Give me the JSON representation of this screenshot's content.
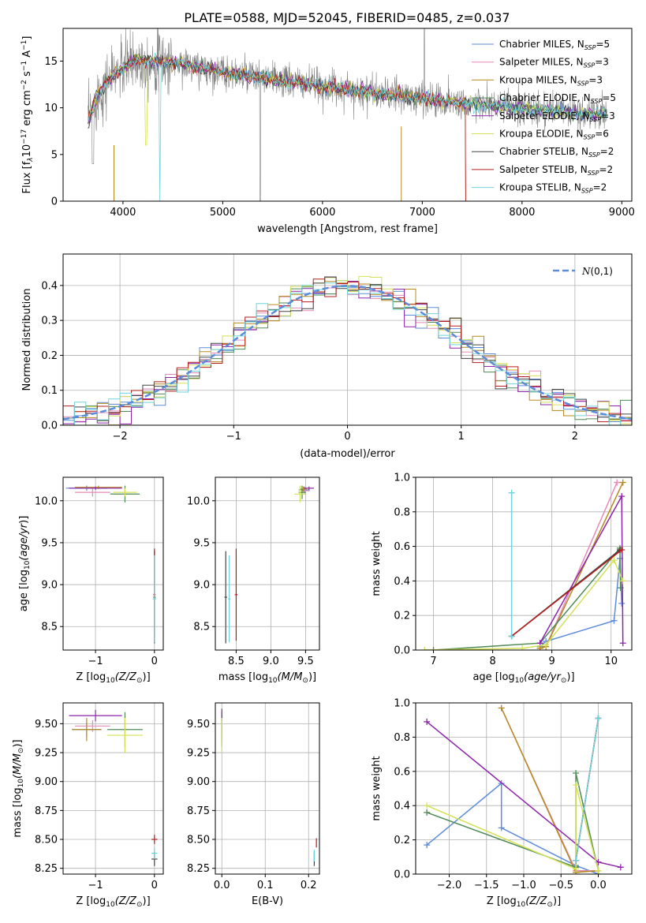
{
  "figure_title": "PLATE=0588, MJD=52045, FIBERID=0485, z=0.037",
  "series": [
    {
      "name": "Chabrier MILES, N_SSP=5",
      "base": "Chabrier MILES, N",
      "sub": "SSP",
      "tail": "=5",
      "color": "#5b8bd9"
    },
    {
      "name": "Salpeter MILES, N_SSP=3",
      "base": "Salpeter MILES, N",
      "sub": "SSP",
      "tail": "=3",
      "color": "#e58ab8"
    },
    {
      "name": "Kroupa MILES, N_SSP=3",
      "base": "Kroupa MILES, N",
      "sub": "SSP",
      "tail": "=3",
      "color": "#b58a1f"
    },
    {
      "name": "Chabrier ELODIE, N_SSP=5",
      "base": "Chabrier ELODIE, N",
      "sub": "SSP",
      "tail": "=5",
      "color": "#4e8a54"
    },
    {
      "name": "Salpeter ELODIE, N_SSP=3",
      "base": "Salpeter ELODIE, N",
      "sub": "SSP",
      "tail": "=3",
      "color": "#8e24aa"
    },
    {
      "name": "Kroupa ELODIE, N_SSP=6",
      "base": "Kroupa ELODIE, N",
      "sub": "SSP",
      "tail": "=6",
      "color": "#d4e157"
    },
    {
      "name": "Chabrier STELIB, N_SSP=2",
      "base": "Chabrier STELIB, N",
      "sub": "SSP",
      "tail": "=2",
      "color": "#444444"
    },
    {
      "name": "Salpeter STELIB, N_SSP=2",
      "base": "Salpeter STELIB, N",
      "sub": "SSP",
      "tail": "=2",
      "color": "#b71c1c"
    },
    {
      "name": "Kroupa STELIB, N_SSP=2",
      "base": "Kroupa STELIB, N",
      "sub": "SSP",
      "tail": "=2",
      "color": "#6dd3dc"
    }
  ],
  "chart_data": [
    {
      "id": "spectrum",
      "type": "line",
      "xlabel": "wavelength [Angstrom, rest frame]",
      "ylabel": "Flux [f_λ 10^-17 erg cm^-2 s^-1 A^-1]",
      "ylabel_parts": {
        "main": "Flux [f",
        "sub": "λ",
        "mid": "10",
        "sup1": "−17",
        "mid2": " erg cm",
        "sup2": "−2",
        "mid3": " s",
        "sup3": "−1",
        "mid4": " A",
        "sup4": "−1",
        "end": "]"
      },
      "xlim": [
        3400,
        9100
      ],
      "ylim": [
        0,
        18.5
      ],
      "xticks": [
        4000,
        5000,
        6000,
        7000,
        8000,
        9000
      ],
      "yticks": [
        0,
        5,
        10,
        15
      ],
      "grid": false,
      "legend": "right",
      "x_range_data": [
        3650,
        8850
      ],
      "continuum": [
        [
          3650,
          8.5
        ],
        [
          3750,
          11.5
        ],
        [
          3900,
          13.5
        ],
        [
          4100,
          15.0
        ],
        [
          4300,
          15.0
        ],
        [
          4700,
          14.5
        ],
        [
          5000,
          13.8
        ],
        [
          5500,
          13.0
        ],
        [
          6000,
          12.3
        ],
        [
          6500,
          11.6
        ],
        [
          7000,
          11.0
        ],
        [
          7500,
          10.4
        ],
        [
          8000,
          9.9
        ],
        [
          8500,
          9.5
        ],
        [
          8850,
          9.3
        ]
      ]
    },
    {
      "id": "residuals",
      "type": "line",
      "xlabel": "(data-model)/error",
      "ylabel": "Normed distribution",
      "xlim": [
        -2.5,
        2.5
      ],
      "ylim": [
        0,
        0.49
      ],
      "xticks": [
        -2,
        -1,
        0,
        1,
        2
      ],
      "yticks": [
        0.0,
        0.1,
        0.2,
        0.3,
        0.4
      ],
      "grid": true,
      "legend": "top-right",
      "reference": {
        "label": "N(0,1)",
        "color": "#5b8bd9"
      }
    },
    {
      "id": "age_vs_Z",
      "type": "scatter",
      "xlabel": "Z [log10(Z/Z⊙)]",
      "ylabel": "age [log10(age/yr)]",
      "xlim": [
        -1.55,
        0.15
      ],
      "ylim": [
        8.22,
        10.28
      ],
      "xticks": [
        -1,
        0
      ],
      "yticks": [
        8.5,
        9.0,
        9.5,
        10.0
      ],
      "grid": true,
      "points": [
        {
          "s": 0,
          "x": -1.15,
          "y": 10.15,
          "ex": 0.35,
          "ey": 0.03
        },
        {
          "s": 1,
          "x": -1.05,
          "y": 10.1,
          "ex": 0.3,
          "ey": 0.05
        },
        {
          "s": 2,
          "x": -0.95,
          "y": 10.16,
          "ex": 0.4,
          "ey": 0.02
        },
        {
          "s": 3,
          "x": -0.5,
          "y": 10.08,
          "ex": 0.25,
          "ey": 0.1
        },
        {
          "s": 4,
          "x": -1.0,
          "y": 10.15,
          "ex": 0.45,
          "ey": 0.02
        },
        {
          "s": 5,
          "x": -0.5,
          "y": 10.1,
          "ex": 0.2,
          "ey": 0.05
        },
        {
          "s": 6,
          "x": 0.0,
          "y": 8.85,
          "ex": 0.02,
          "ey": 0.55
        },
        {
          "s": 7,
          "x": 0.0,
          "y": 8.88,
          "ex": 0.02,
          "ey": 0.55
        },
        {
          "s": 8,
          "x": 0.0,
          "y": 8.83,
          "ex": 0.03,
          "ey": 0.52
        }
      ]
    },
    {
      "id": "age_vs_mass",
      "type": "scatter",
      "xlabel": "mass [log10(M/M⊙)]",
      "ylabel": "",
      "xlim": [
        8.2,
        9.7
      ],
      "ylim": [
        8.22,
        10.28
      ],
      "xticks": [
        8.5,
        9.0,
        9.5
      ],
      "yticks": [
        8.5,
        9.0,
        9.5,
        10.0
      ],
      "grid": true,
      "points": [
        {
          "s": 0,
          "x": 9.48,
          "y": 10.13,
          "ex": 0.08,
          "ey": 0.04
        },
        {
          "s": 1,
          "x": 9.5,
          "y": 10.12,
          "ex": 0.06,
          "ey": 0.05
        },
        {
          "s": 2,
          "x": 9.47,
          "y": 10.14,
          "ex": 0.05,
          "ey": 0.03
        },
        {
          "s": 3,
          "x": 9.45,
          "y": 10.1,
          "ex": 0.05,
          "ey": 0.08
        },
        {
          "s": 4,
          "x": 9.55,
          "y": 10.15,
          "ex": 0.07,
          "ey": 0.02
        },
        {
          "s": 5,
          "x": 9.42,
          "y": 10.08,
          "ex": 0.08,
          "ey": 0.1
        },
        {
          "s": 6,
          "x": 8.35,
          "y": 8.85,
          "ex": 0.02,
          "ey": 0.55
        },
        {
          "s": 7,
          "x": 8.5,
          "y": 8.88,
          "ex": 0.02,
          "ey": 0.55
        },
        {
          "s": 8,
          "x": 8.4,
          "y": 8.83,
          "ex": 0.02,
          "ey": 0.52
        }
      ]
    },
    {
      "id": "weight_vs_age",
      "type": "line",
      "xlabel": "age [log10(age/yr)]",
      "ylabel": "mass weight",
      "xlim": [
        6.7,
        10.35
      ],
      "ylim": [
        0,
        1.0
      ],
      "xticks": [
        7,
        8,
        9,
        10
      ],
      "yticks": [
        0.0,
        0.2,
        0.4,
        0.6,
        0.8,
        1.0
      ],
      "grid": true,
      "lines": [
        {
          "s": 0,
          "pts": [
            [
              8.8,
              0.02
            ],
            [
              8.9,
              0.05
            ],
            [
              10.05,
              0.17
            ],
            [
              10.15,
              0.53
            ],
            [
              10.18,
              0.27
            ]
          ]
        },
        {
          "s": 1,
          "pts": [
            [
              8.8,
              0.01
            ],
            [
              8.9,
              0.02
            ],
            [
              10.1,
              0.97
            ]
          ]
        },
        {
          "s": 2,
          "pts": [
            [
              8.8,
              0.01
            ],
            [
              8.9,
              0.02
            ],
            [
              10.2,
              0.97
            ]
          ]
        },
        {
          "s": 3,
          "pts": [
            [
              7.0,
              0.0
            ],
            [
              8.8,
              0.04
            ],
            [
              10.15,
              0.59
            ],
            [
              10.16,
              0.36
            ]
          ]
        },
        {
          "s": 4,
          "pts": [
            [
              8.8,
              0.04
            ],
            [
              10.18,
              0.89
            ],
            [
              10.2,
              0.04
            ]
          ]
        },
        {
          "s": 5,
          "pts": [
            [
              6.85,
              0.0
            ],
            [
              8.5,
              0.01
            ],
            [
              8.9,
              0.03
            ],
            [
              10.05,
              0.52
            ],
            [
              10.2,
              0.4
            ]
          ]
        },
        {
          "s": 6,
          "pts": [
            [
              8.32,
              0.08
            ],
            [
              10.15,
              0.58
            ]
          ]
        },
        {
          "s": 7,
          "pts": [
            [
              8.32,
              0.08
            ],
            [
              10.18,
              0.58
            ]
          ]
        },
        {
          "s": 8,
          "pts": [
            [
              8.32,
              0.08
            ],
            [
              8.32,
              0.91
            ]
          ]
        }
      ]
    },
    {
      "id": "mass_vs_Z",
      "type": "scatter",
      "xlabel": "Z [log10(Z/Z⊙)]",
      "ylabel": "mass [log10(M/M⊙)]",
      "xlim": [
        -1.55,
        0.15
      ],
      "ylim": [
        8.2,
        9.68
      ],
      "xticks": [
        -1,
        0
      ],
      "yticks": [
        8.25,
        8.5,
        8.75,
        9.0,
        9.25,
        9.5
      ],
      "grid": true,
      "points": [
        {
          "s": 0,
          "x": -1.15,
          "y": 9.45,
          "ex": 0.25,
          "ey": 0.06
        },
        {
          "s": 1,
          "x": -1.05,
          "y": 9.48,
          "ex": 0.3,
          "ey": 0.05
        },
        {
          "s": 2,
          "x": -1.15,
          "y": 9.45,
          "ex": 0.25,
          "ey": 0.1
        },
        {
          "s": 3,
          "x": -0.5,
          "y": 9.45,
          "ex": 0.3,
          "ey": 0.15
        },
        {
          "s": 4,
          "x": -1.0,
          "y": 9.57,
          "ex": 0.45,
          "ey": 0.05
        },
        {
          "s": 5,
          "x": -0.5,
          "y": 9.4,
          "ex": 0.3,
          "ey": 0.15
        },
        {
          "s": 6,
          "x": 0.0,
          "y": 8.33,
          "ex": 0.05,
          "ey": 0.06
        },
        {
          "s": 7,
          "x": 0.0,
          "y": 8.5,
          "ex": 0.05,
          "ey": 0.04
        },
        {
          "s": 8,
          "x": 0.0,
          "y": 8.38,
          "ex": 0.05,
          "ey": 0.05
        }
      ]
    },
    {
      "id": "mass_vs_ebv",
      "type": "scatter",
      "xlabel": "E(B-V)",
      "ylabel": "",
      "xlim": [
        -0.015,
        0.225
      ],
      "ylim": [
        8.2,
        9.68
      ],
      "xticks": [
        0.0,
        0.1,
        0.2
      ],
      "yticks": [
        8.25,
        8.5,
        8.75,
        9.0,
        9.25,
        9.5
      ],
      "grid": true,
      "points": [
        {
          "s": 0,
          "x": 0.0,
          "y": 9.45,
          "ex": 0.0,
          "ey": 0.05
        },
        {
          "s": 1,
          "x": 0.0,
          "y": 9.48,
          "ex": 0.0,
          "ey": 0.05
        },
        {
          "s": 2,
          "x": 0.0,
          "y": 9.45,
          "ex": 0.0,
          "ey": 0.1
        },
        {
          "s": 3,
          "x": 0.0,
          "y": 9.45,
          "ex": 0.0,
          "ey": 0.15
        },
        {
          "s": 4,
          "x": 0.0,
          "y": 9.58,
          "ex": 0.0,
          "ey": 0.05
        },
        {
          "s": 5,
          "x": 0.0,
          "y": 9.4,
          "ex": 0.0,
          "ey": 0.15
        },
        {
          "s": 6,
          "x": 0.213,
          "y": 8.33,
          "ex": 0.0,
          "ey": 0.06
        },
        {
          "s": 7,
          "x": 0.218,
          "y": 8.47,
          "ex": 0.0,
          "ey": 0.04
        },
        {
          "s": 8,
          "x": 0.213,
          "y": 8.36,
          "ex": 0.0,
          "ey": 0.05
        }
      ]
    },
    {
      "id": "weight_vs_Z",
      "type": "line",
      "xlabel": "Z [log10(Z/Z⊙)]",
      "ylabel": "mass weight",
      "xlim": [
        -2.45,
        0.45
      ],
      "ylim": [
        0,
        1.0
      ],
      "xticks": [
        -2.0,
        -1.5,
        -1.0,
        -0.5,
        0.0
      ],
      "yticks": [
        0.0,
        0.2,
        0.4,
        0.6,
        0.8,
        1.0
      ],
      "grid": true,
      "lines": [
        {
          "s": 0,
          "pts": [
            [
              -2.3,
              0.17
            ],
            [
              -1.3,
              0.53
            ],
            [
              -1.3,
              0.27
            ],
            [
              -0.3,
              0.05
            ],
            [
              0.0,
              0.0
            ]
          ]
        },
        {
          "s": 1,
          "pts": [
            [
              -1.3,
              0.97
            ],
            [
              -0.3,
              0.02
            ],
            [
              0.0,
              0.02
            ]
          ]
        },
        {
          "s": 2,
          "pts": [
            [
              -1.3,
              0.97
            ],
            [
              -0.3,
              0.01
            ],
            [
              0.0,
              0.02
            ]
          ]
        },
        {
          "s": 3,
          "pts": [
            [
              -2.3,
              0.36
            ],
            [
              -0.3,
              0.04
            ],
            [
              -0.3,
              0.59
            ],
            [
              0.0,
              0.02
            ]
          ]
        },
        {
          "s": 4,
          "pts": [
            [
              -2.3,
              0.89
            ],
            [
              0.0,
              0.07
            ],
            [
              0.3,
              0.04
            ]
          ]
        },
        {
          "s": 5,
          "pts": [
            [
              -2.3,
              0.4
            ],
            [
              -0.3,
              0.03
            ],
            [
              -0.3,
              0.52
            ],
            [
              0.0,
              0.02
            ]
          ]
        },
        {
          "s": 6,
          "pts": [
            [
              -0.3,
              0.08
            ],
            [
              0.0,
              0.91
            ]
          ]
        },
        {
          "s": 7,
          "pts": [
            [
              -0.3,
              0.08
            ],
            [
              0.0,
              0.91
            ]
          ]
        },
        {
          "s": 8,
          "pts": [
            [
              -0.3,
              0.08
            ],
            [
              0.0,
              0.91
            ]
          ]
        }
      ]
    }
  ]
}
